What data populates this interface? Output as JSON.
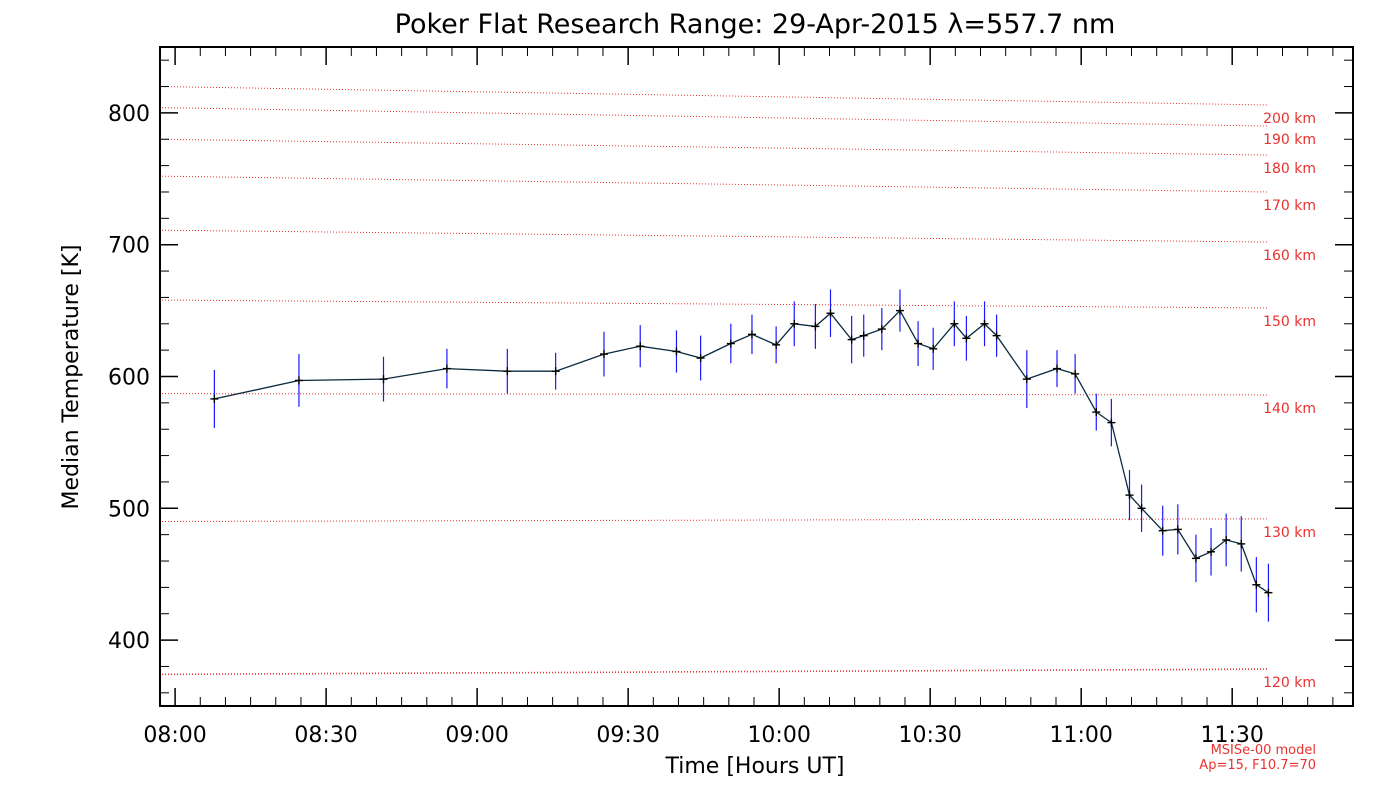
{
  "chart_data": {
    "type": "line",
    "title": "Poker Flat Research Range: 29-Apr-2015 λ=557.7 nm",
    "xlabel": "Time [Hours UT]",
    "ylabel": "Median Temperature [K]",
    "x_unit": "hours UT",
    "xlim": [
      7.95,
      11.9
    ],
    "ylim": [
      350,
      850
    ],
    "x_ticks": [
      {
        "value": 8.0,
        "label": "08:00"
      },
      {
        "value": 8.5,
        "label": "08:30"
      },
      {
        "value": 9.0,
        "label": "09:00"
      },
      {
        "value": 9.5,
        "label": "09:30"
      },
      {
        "value": 10.0,
        "label": "10:00"
      },
      {
        "value": 10.5,
        "label": "10:30"
      },
      {
        "value": 11.0,
        "label": "11:00"
      },
      {
        "value": 11.5,
        "label": "11:30"
      }
    ],
    "y_ticks": [
      400,
      500,
      600,
      700,
      800
    ],
    "grid": false,
    "series": [
      {
        "color": "#000000",
        "error_color": "#1a1aff",
        "x": [
          8.13,
          8.41,
          8.69,
          8.9,
          9.1,
          9.26,
          9.42,
          9.54,
          9.66,
          9.74,
          9.84,
          9.91,
          9.99,
          10.05,
          10.12,
          10.17,
          10.24,
          10.28,
          10.34,
          10.4,
          10.46,
          10.51,
          10.58,
          10.62,
          10.68,
          10.72,
          10.82,
          10.92,
          10.98,
          11.05,
          11.1,
          11.16,
          11.2,
          11.27,
          11.32,
          11.38,
          11.43,
          11.48,
          11.53,
          11.58,
          11.62
        ],
        "y": [
          583,
          597,
          598,
          606,
          604,
          604,
          617,
          623,
          619,
          614,
          625,
          632,
          624,
          640,
          638,
          648,
          628,
          631,
          636,
          650,
          625,
          621,
          640,
          629,
          640,
          631,
          598,
          606,
          602,
          573,
          565,
          510,
          500,
          483,
          484,
          462,
          467,
          476,
          473,
          442,
          436
        ],
        "err": [
          22,
          20,
          17,
          15,
          17,
          14,
          17,
          16,
          16,
          17,
          15,
          15,
          14,
          17,
          17,
          18,
          18,
          16,
          16,
          16,
          17,
          16,
          17,
          17,
          17,
          16,
          22,
          14,
          15,
          14,
          18,
          19,
          18,
          19,
          19,
          18,
          18,
          20,
          21,
          21,
          22
        ]
      }
    ],
    "reference_lines": {
      "color": "#e8322e",
      "style": "dotted",
      "lines": [
        {
          "label": "120 km",
          "y_start": 374,
          "y_end": 378
        },
        {
          "label": "130 km",
          "y_start": 490,
          "y_end": 492
        },
        {
          "label": "140 km",
          "y_start": 587,
          "y_end": 586
        },
        {
          "label": "150 km",
          "y_start": 658,
          "y_end": 652
        },
        {
          "label": "160 km",
          "y_start": 711,
          "y_end": 702
        },
        {
          "label": "170 km",
          "y_start": 752,
          "y_end": 740
        },
        {
          "label": "180 km",
          "y_start": 780,
          "y_end": 768
        },
        {
          "label": "190 km",
          "y_start": 804,
          "y_end": 790
        },
        {
          "label": "200 km",
          "y_start": 820,
          "y_end": 806
        }
      ]
    },
    "annotations": [
      "MSISe-00 model",
      "Ap=15, F10.7=70"
    ]
  }
}
